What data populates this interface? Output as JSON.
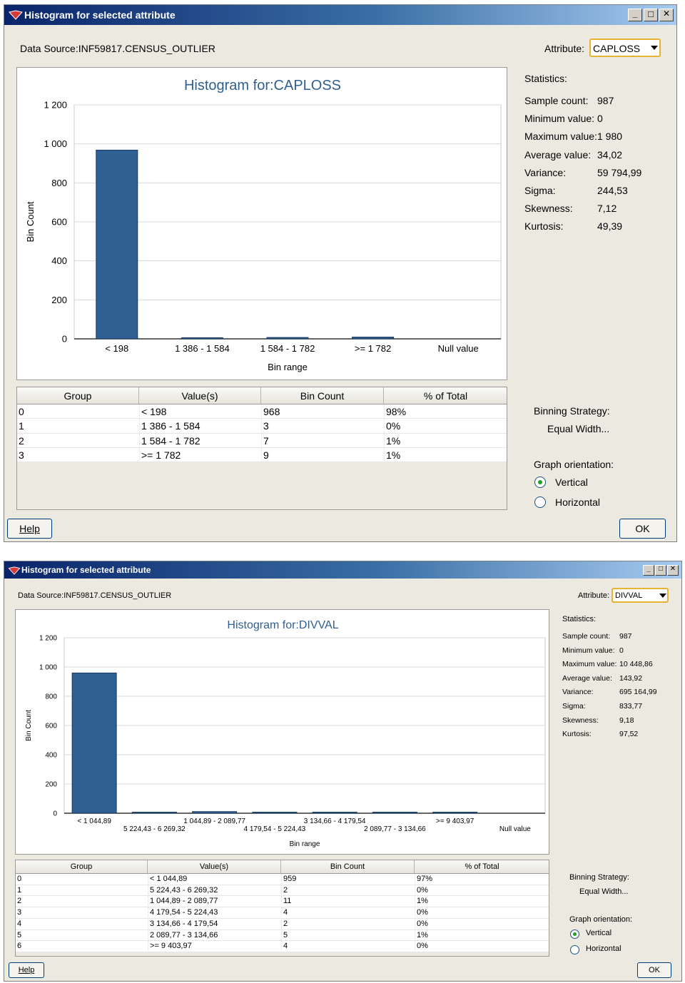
{
  "windows": [
    {
      "title": "Histogram for selected attribute",
      "minimize_label": "_",
      "maximize_label": "□",
      "close_label": "✕",
      "data_source": "Data Source:INF59817.CENSUS_OUTLIER",
      "attribute_label": "Attribute:",
      "attribute_value": "CAPLOSS",
      "chart_data": {
        "type": "bar",
        "title": "Histogram for:CAPLOSS",
        "xlabel": "Bin range",
        "ylabel": "Bin Count",
        "categories": [
          "< 198",
          "1 386 - 1 584",
          "1 584 - 1 782",
          ">= 1 782",
          "Null value"
        ],
        "values": [
          968,
          3,
          7,
          9,
          0
        ],
        "ylim": [
          0,
          1200
        ],
        "yticks": [
          "0",
          "200",
          "400",
          "600",
          "800",
          "1 000",
          "1 200"
        ],
        "grid": true,
        "bar_color": "#2f5f93"
      },
      "statistics_label": "Statistics:",
      "stats": [
        {
          "label": "Sample count:",
          "value": "987"
        },
        {
          "label": "Minimum value:",
          "value": "0"
        },
        {
          "label": "Maximum value:",
          "value": "1 980"
        },
        {
          "label": "Average value:",
          "value": "34,02"
        },
        {
          "label": "Variance:",
          "value": "59 794,99"
        },
        {
          "label": "Sigma:",
          "value": "244,53"
        },
        {
          "label": "Skewness:",
          "value": "7,12"
        },
        {
          "label": "Kurtosis:",
          "value": "49,39"
        }
      ],
      "table": {
        "headers": [
          "Group",
          "Value(s)",
          "Bin Count",
          "% of Total"
        ],
        "rows": [
          [
            "0",
            "< 198",
            "968",
            "98%"
          ],
          [
            "1",
            "1 386 - 1 584",
            "3",
            "0%"
          ],
          [
            "2",
            "1 584 - 1 782",
            "7",
            "1%"
          ],
          [
            "3",
            ">= 1 782",
            "9",
            "1%"
          ]
        ]
      },
      "binning_label": "Binning Strategy:",
      "binning_value": "Equal Width...",
      "orientation_label": "Graph orientation:",
      "orientation_options": [
        "Vertical",
        "Horizontal"
      ],
      "orientation_selected": "Vertical",
      "help_label": "Help",
      "ok_label": "OK"
    },
    {
      "title": "Histogram for selected attribute",
      "minimize_label": "_",
      "maximize_label": "□",
      "close_label": "✕",
      "data_source": "Data Source:INF59817.CENSUS_OUTLIER",
      "attribute_label": "Attribute:",
      "attribute_value": "DIVVAL",
      "chart_data": {
        "type": "bar",
        "title": "Histogram for:DIVVAL",
        "xlabel": "Bin range",
        "ylabel": "Bin Count",
        "categories": [
          "< 1 044,89",
          "5 224,43 - 6 269,32",
          "1 044,89 - 2 089,77",
          "4 179,54 - 5 224,43",
          "3 134,66 - 4 179,54",
          "2 089,77 - 3 134,66",
          ">= 9 403,97",
          "Null value"
        ],
        "values": [
          959,
          2,
          11,
          4,
          2,
          5,
          4,
          0
        ],
        "ylim": [
          0,
          1200
        ],
        "yticks": [
          "0",
          "200",
          "400",
          "600",
          "800",
          "1 000",
          "1 200"
        ],
        "grid": true,
        "bar_color": "#2f5f93"
      },
      "statistics_label": "Statistics:",
      "stats": [
        {
          "label": "Sample count:",
          "value": "987"
        },
        {
          "label": "Minimum value:",
          "value": "0"
        },
        {
          "label": "Maximum value:",
          "value": "10 448,86"
        },
        {
          "label": "Average value:",
          "value": "143,92"
        },
        {
          "label": "Variance:",
          "value": "695 164,99"
        },
        {
          "label": "Sigma:",
          "value": "833,77"
        },
        {
          "label": "Skewness:",
          "value": "9,18"
        },
        {
          "label": "Kurtosis:",
          "value": "97,52"
        }
      ],
      "table": {
        "headers": [
          "Group",
          "Value(s)",
          "Bin Count",
          "% of Total"
        ],
        "rows": [
          [
            "0",
            "< 1 044,89",
            "959",
            "97%"
          ],
          [
            "1",
            "5 224,43 - 6 269,32",
            "2",
            "0%"
          ],
          [
            "2",
            "1 044,89 - 2 089,77",
            "11",
            "1%"
          ],
          [
            "3",
            "4 179,54 - 5 224,43",
            "4",
            "0%"
          ],
          [
            "4",
            "3 134,66 - 4 179,54",
            "2",
            "0%"
          ],
          [
            "5",
            "2 089,77 - 3 134,66",
            "5",
            "1%"
          ],
          [
            "6",
            ">= 9 403,97",
            "4",
            "0%"
          ]
        ]
      },
      "binning_label": "Binning Strategy:",
      "binning_value": "Equal Width...",
      "orientation_label": "Graph orientation:",
      "orientation_options": [
        "Vertical",
        "Horizontal"
      ],
      "orientation_selected": "Vertical",
      "help_label": "Help",
      "ok_label": "OK"
    }
  ]
}
